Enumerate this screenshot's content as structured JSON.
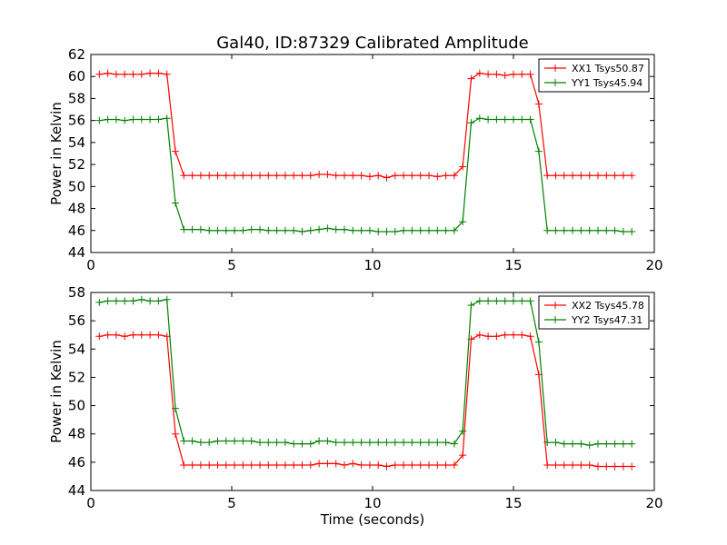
{
  "figure": {
    "title": "Gal40, ID:87329 Calibrated Amplitude"
  },
  "chart_data": [
    {
      "type": "line",
      "title": "Gal40, ID:87329 Calibrated Amplitude",
      "xlabel": "",
      "ylabel": "Power in Kelvin",
      "xlim": [
        0,
        20
      ],
      "ylim": [
        44,
        62
      ],
      "xticks": [
        0,
        5,
        10,
        15,
        20
      ],
      "yticks": [
        44,
        46,
        48,
        50,
        52,
        54,
        56,
        58,
        60,
        62
      ],
      "grid": false,
      "legend_position": "top-right",
      "x": [
        0.3,
        0.6,
        0.9,
        1.2,
        1.5,
        1.8,
        2.1,
        2.4,
        2.7,
        3.0,
        3.3,
        3.6,
        3.9,
        4.2,
        4.5,
        4.8,
        5.1,
        5.4,
        5.7,
        6.0,
        6.3,
        6.6,
        6.9,
        7.2,
        7.5,
        7.8,
        8.1,
        8.4,
        8.7,
        9.0,
        9.3,
        9.6,
        9.9,
        10.2,
        10.5,
        10.8,
        11.1,
        11.4,
        11.7,
        12.0,
        12.3,
        12.6,
        12.9,
        13.2,
        13.5,
        13.8,
        14.1,
        14.4,
        14.7,
        15.0,
        15.3,
        15.6,
        15.9,
        16.2,
        16.5,
        16.8,
        17.1,
        17.4,
        17.7,
        18.0,
        18.3,
        18.6,
        18.9,
        19.2
      ],
      "series": [
        {
          "name": "XX1 Tsys50.87",
          "color": "#ff0000",
          "values": [
            60.2,
            60.3,
            60.2,
            60.2,
            60.2,
            60.2,
            60.3,
            60.3,
            60.2,
            53.2,
            51.0,
            51.0,
            51.0,
            51.0,
            51.0,
            51.0,
            51.0,
            51.0,
            51.0,
            51.0,
            51.0,
            51.0,
            51.0,
            51.0,
            51.0,
            51.0,
            51.1,
            51.1,
            51.0,
            51.0,
            51.0,
            51.0,
            50.9,
            51.0,
            50.8,
            51.0,
            51.0,
            51.0,
            51.0,
            51.0,
            50.9,
            51.0,
            51.0,
            51.8,
            59.8,
            60.3,
            60.2,
            60.2,
            60.1,
            60.2,
            60.2,
            60.2,
            57.5,
            51.0,
            51.0,
            51.0,
            51.0,
            51.0,
            51.0,
            51.0,
            51.0,
            51.0,
            51.0,
            51.0
          ]
        },
        {
          "name": "YY1 Tsys45.94",
          "color": "#008000",
          "values": [
            56.0,
            56.1,
            56.1,
            56.0,
            56.1,
            56.1,
            56.1,
            56.1,
            56.2,
            48.5,
            46.1,
            46.1,
            46.1,
            46.0,
            46.0,
            46.0,
            46.0,
            46.0,
            46.1,
            46.1,
            46.0,
            46.0,
            46.0,
            46.0,
            45.9,
            46.0,
            46.1,
            46.2,
            46.1,
            46.1,
            46.0,
            46.0,
            46.0,
            45.9,
            45.9,
            45.9,
            46.0,
            46.0,
            46.0,
            46.0,
            46.0,
            46.0,
            46.0,
            46.8,
            55.8,
            56.2,
            56.1,
            56.1,
            56.1,
            56.1,
            56.1,
            56.1,
            53.2,
            46.0,
            46.0,
            46.0,
            46.0,
            46.0,
            46.0,
            46.0,
            46.0,
            46.0,
            45.9,
            45.9
          ]
        }
      ]
    },
    {
      "type": "line",
      "title": "",
      "xlabel": "Time (seconds)",
      "ylabel": "Power in Kelvin",
      "xlim": [
        0,
        20
      ],
      "ylim": [
        44,
        58
      ],
      "xticks": [
        0,
        5,
        10,
        15,
        20
      ],
      "yticks": [
        44,
        46,
        48,
        50,
        52,
        54,
        56,
        58
      ],
      "grid": false,
      "legend_position": "top-right",
      "x": [
        0.3,
        0.6,
        0.9,
        1.2,
        1.5,
        1.8,
        2.1,
        2.4,
        2.7,
        3.0,
        3.3,
        3.6,
        3.9,
        4.2,
        4.5,
        4.8,
        5.1,
        5.4,
        5.7,
        6.0,
        6.3,
        6.6,
        6.9,
        7.2,
        7.5,
        7.8,
        8.1,
        8.4,
        8.7,
        9.0,
        9.3,
        9.6,
        9.9,
        10.2,
        10.5,
        10.8,
        11.1,
        11.4,
        11.7,
        12.0,
        12.3,
        12.6,
        12.9,
        13.2,
        13.5,
        13.8,
        14.1,
        14.4,
        14.7,
        15.0,
        15.3,
        15.6,
        15.9,
        16.2,
        16.5,
        16.8,
        17.1,
        17.4,
        17.7,
        18.0,
        18.3,
        18.6,
        18.9,
        19.2
      ],
      "series": [
        {
          "name": "XX2 Tsys45.78",
          "color": "#ff0000",
          "values": [
            54.9,
            55.0,
            55.0,
            54.9,
            55.0,
            55.0,
            55.0,
            55.0,
            54.9,
            48.0,
            45.8,
            45.8,
            45.8,
            45.8,
            45.8,
            45.8,
            45.8,
            45.8,
            45.8,
            45.8,
            45.8,
            45.8,
            45.8,
            45.8,
            45.8,
            45.8,
            45.9,
            45.9,
            45.9,
            45.8,
            45.9,
            45.8,
            45.8,
            45.8,
            45.7,
            45.8,
            45.8,
            45.8,
            45.8,
            45.8,
            45.8,
            45.8,
            45.8,
            46.5,
            54.7,
            55.0,
            54.9,
            54.9,
            55.0,
            55.0,
            55.0,
            54.9,
            52.2,
            45.8,
            45.8,
            45.8,
            45.8,
            45.8,
            45.8,
            45.7,
            45.7,
            45.7,
            45.7,
            45.7
          ]
        },
        {
          "name": "YY2 Tsys47.31",
          "color": "#008000",
          "values": [
            57.3,
            57.4,
            57.4,
            57.4,
            57.4,
            57.5,
            57.4,
            57.4,
            57.5,
            49.8,
            47.5,
            47.5,
            47.4,
            47.4,
            47.5,
            47.5,
            47.5,
            47.5,
            47.5,
            47.4,
            47.4,
            47.4,
            47.4,
            47.3,
            47.3,
            47.3,
            47.5,
            47.5,
            47.4,
            47.4,
            47.4,
            47.4,
            47.4,
            47.4,
            47.4,
            47.4,
            47.4,
            47.4,
            47.4,
            47.4,
            47.4,
            47.4,
            47.3,
            48.2,
            57.1,
            57.4,
            57.4,
            57.4,
            57.4,
            57.4,
            57.4,
            57.4,
            54.5,
            47.4,
            47.4,
            47.3,
            47.3,
            47.3,
            47.2,
            47.3,
            47.3,
            47.3,
            47.3,
            47.3
          ]
        }
      ]
    }
  ]
}
